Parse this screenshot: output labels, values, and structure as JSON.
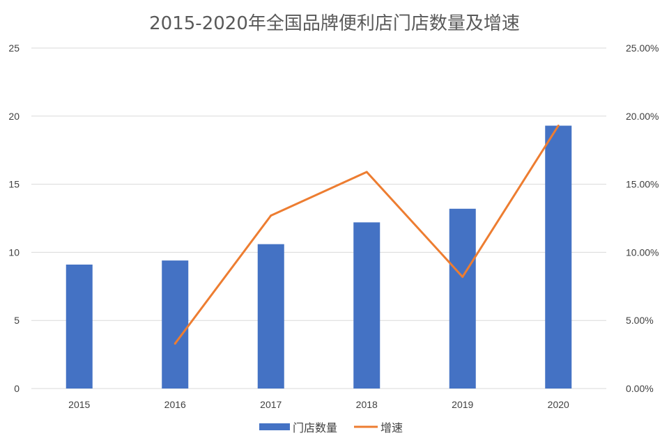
{
  "chart_data": {
    "type": "bar",
    "title": "2015-2020年全国品牌便利店门店数量及增速",
    "categories": [
      "2015",
      "2016",
      "2017",
      "2018",
      "2019",
      "2020"
    ],
    "series": [
      {
        "name": "门店数量",
        "type": "bar",
        "axis": "left",
        "color": "#4472C4",
        "values": [
          9.1,
          9.4,
          10.6,
          12.2,
          13.2,
          19.3
        ]
      },
      {
        "name": "增速",
        "type": "line",
        "axis": "right",
        "color": "#ED7D31",
        "values": [
          null,
          0.033,
          0.127,
          0.159,
          0.082,
          0.193
        ]
      }
    ],
    "ylim": [
      0,
      25
    ],
    "yticks": [
      "0",
      "5",
      "10",
      "15",
      "20",
      "25"
    ],
    "y2lim": [
      0,
      0.25
    ],
    "y2ticks": [
      "0.00%",
      "5.00%",
      "10.00%",
      "15.00%",
      "20.00%",
      "25.00%"
    ],
    "grid": true,
    "legend_position": "bottom"
  }
}
